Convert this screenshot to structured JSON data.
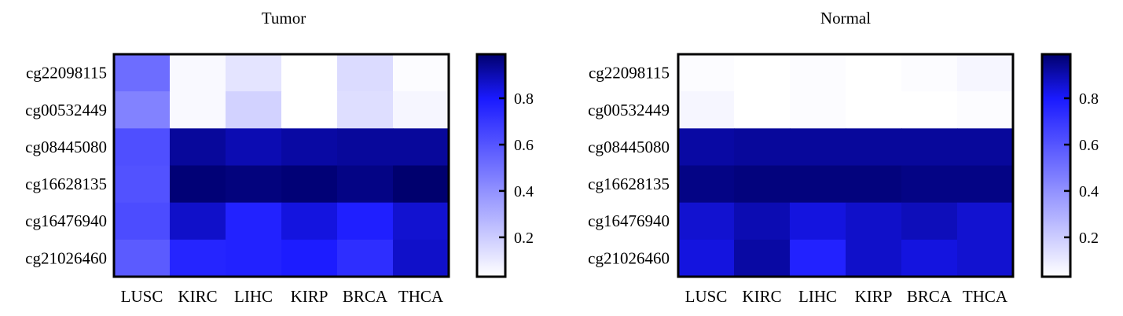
{
  "chart_data": [
    {
      "type": "heatmap",
      "title": "Tumor",
      "rows": [
        "cg22098115",
        "cg00532449",
        "cg08445080",
        "cg16628135",
        "cg16476940",
        "cg21026460"
      ],
      "columns": [
        "LUSC",
        "KIRC",
        "LIHC",
        "KIRP",
        "BRCA",
        "THCA"
      ],
      "values": [
        [
          0.52,
          0.05,
          0.12,
          0.01,
          0.15,
          0.04
        ],
        [
          0.45,
          0.05,
          0.18,
          0.03,
          0.14,
          0.06
        ],
        [
          0.62,
          0.93,
          0.9,
          0.92,
          0.93,
          0.93
        ],
        [
          0.61,
          0.98,
          0.97,
          0.98,
          0.96,
          0.99
        ],
        [
          0.63,
          0.87,
          0.77,
          0.84,
          0.78,
          0.86
        ],
        [
          0.58,
          0.76,
          0.77,
          0.79,
          0.73,
          0.87
        ]
      ],
      "colorbar": {
        "range": [
          0.03,
          0.99
        ],
        "ticks": [
          0.2,
          0.4,
          0.6,
          0.8
        ],
        "tick_labels": [
          "0.2",
          "0.4",
          "0.6",
          "0.8"
        ]
      },
      "colors": {
        "low": "#ffffff",
        "mid": "#1a1aff",
        "high": "#00006e"
      }
    },
    {
      "type": "heatmap",
      "title": "Normal",
      "rows": [
        "cg22098115",
        "cg00532449",
        "cg08445080",
        "cg16628135",
        "cg16476940",
        "cg21026460"
      ],
      "columns": [
        "LUSC",
        "KIRC",
        "LIHC",
        "KIRP",
        "BRCA",
        "THCA"
      ],
      "values": [
        [
          0.04,
          0.01,
          0.04,
          0.02,
          0.04,
          0.06
        ],
        [
          0.06,
          0.02,
          0.04,
          0.02,
          0.03,
          0.04
        ],
        [
          0.92,
          0.93,
          0.93,
          0.93,
          0.93,
          0.93
        ],
        [
          0.96,
          0.97,
          0.97,
          0.97,
          0.96,
          0.96
        ],
        [
          0.86,
          0.9,
          0.84,
          0.87,
          0.89,
          0.86
        ],
        [
          0.84,
          0.92,
          0.77,
          0.87,
          0.84,
          0.86
        ]
      ],
      "colorbar": {
        "range": [
          0.03,
          0.99
        ],
        "ticks": [
          0.2,
          0.4,
          0.6,
          0.8
        ],
        "tick_labels": [
          "0.2",
          "0.4",
          "0.6",
          "0.8"
        ]
      },
      "colors": {
        "low": "#ffffff",
        "mid": "#1a1aff",
        "high": "#00006e"
      }
    }
  ]
}
